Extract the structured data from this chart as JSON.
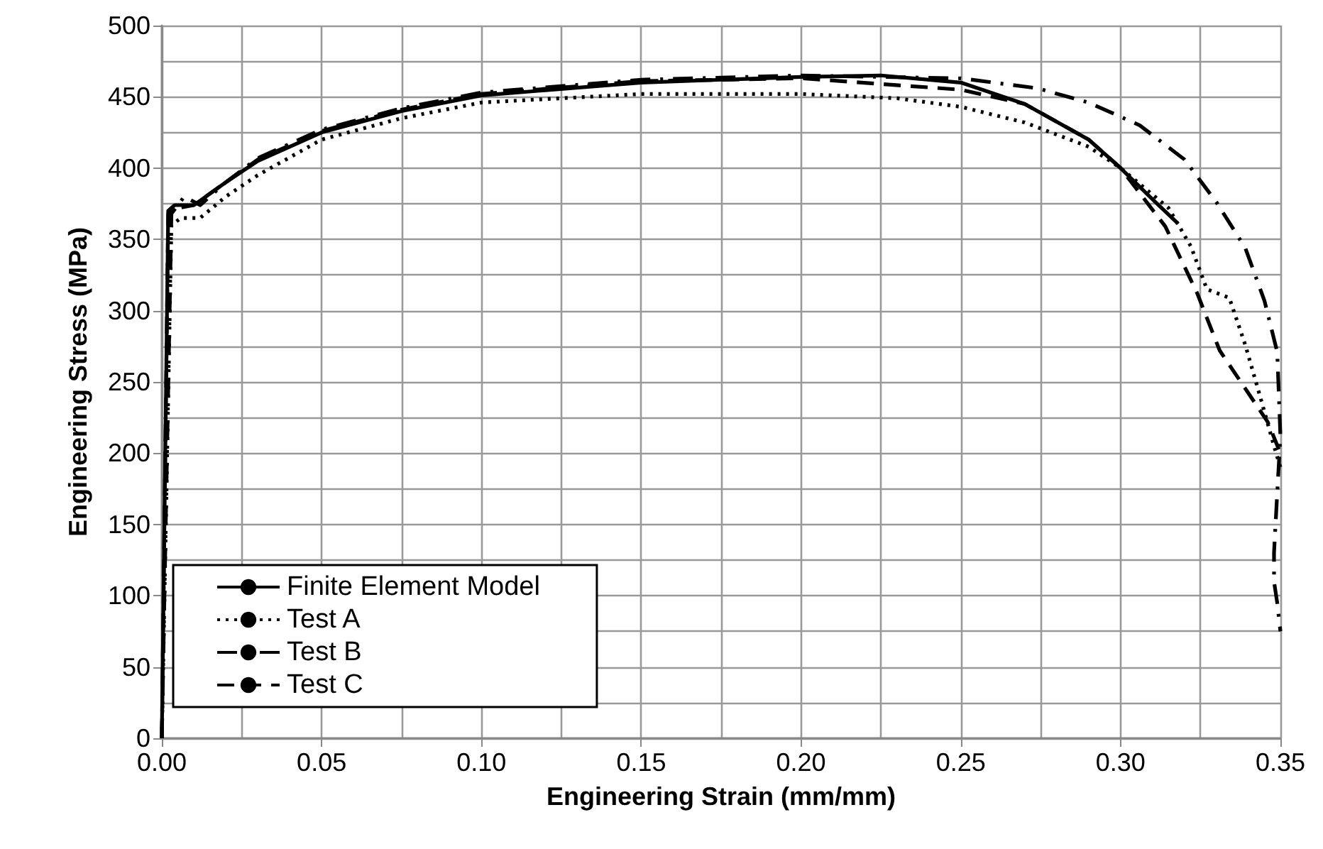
{
  "chart_data": {
    "type": "line",
    "xlabel": "Engineering Strain (mm/mm)",
    "ylabel": "Engineering Stress (MPa)",
    "xlim": [
      0,
      0.35
    ],
    "xticks": [
      {
        "value": 0,
        "label": "0.00"
      },
      0.05,
      {
        "value": 0.1,
        "label": "0.10"
      },
      0.15,
      {
        "value": 0.2,
        "label": "0.20"
      },
      0.25,
      {
        "value": 0.3,
        "label": "0.30"
      },
      0.35
    ],
    "ylim": [
      0,
      500
    ],
    "yticks": [
      0,
      50,
      100,
      150,
      200,
      250,
      300,
      350,
      400,
      450,
      500
    ],
    "grid": true,
    "legend": "bottom left",
    "marker": "none",
    "series": [
      {
        "name": "Finite Element Model",
        "color": "#000000",
        "line_style": "solid",
        "x": [
          0,
          0.002,
          0.004,
          0.01,
          0.02,
          0.03,
          0.05,
          0.075,
          0.1,
          0.15,
          0.2,
          0.225,
          0.25,
          0.27,
          0.29,
          0.3,
          0.31,
          0.318
        ],
        "values": [
          0,
          370,
          374,
          374,
          390,
          405,
          425,
          440,
          451,
          460,
          464,
          465,
          460,
          445,
          420,
          400,
          378,
          361
        ]
      },
      {
        "name": "Test A",
        "color": "#000000",
        "line_style": "dotted",
        "x": [
          0,
          0.003,
          0.006,
          0.012,
          0.02,
          0.03,
          0.05,
          0.075,
          0.1,
          0.15,
          0.2,
          0.23,
          0.25,
          0.27,
          0.29,
          0.3,
          0.315,
          0.322,
          0.327,
          0.334,
          0.339,
          0.344,
          0.348,
          0.35
        ],
        "values": [
          0,
          360,
          365,
          365,
          380,
          395,
          420,
          435,
          446,
          452,
          452,
          449,
          443,
          432,
          415,
          400,
          372,
          345,
          315,
          309,
          276,
          237,
          205,
          190
        ]
      },
      {
        "name": "Test B",
        "color": "#000000",
        "line_style": "dashdot",
        "x": [
          0,
          0.003,
          0.007,
          0.012,
          0.02,
          0.03,
          0.05,
          0.075,
          0.1,
          0.15,
          0.2,
          0.25,
          0.274,
          0.29,
          0.306,
          0.32,
          0.33,
          0.339,
          0.345,
          0.349,
          0.35,
          0.349,
          0.348,
          0.348,
          0.349,
          0.35
        ],
        "values": [
          0,
          368,
          380,
          374,
          390,
          407,
          427,
          442,
          453,
          462,
          465,
          463,
          456,
          446,
          430,
          406,
          376,
          344,
          307,
          271,
          212,
          172,
          130,
          110,
          95,
          75
        ]
      },
      {
        "name": "Test C",
        "color": "#000000",
        "line_style": "dashed",
        "x": [
          0,
          0.002,
          0.005,
          0.01,
          0.02,
          0.03,
          0.05,
          0.075,
          0.1,
          0.15,
          0.2,
          0.25,
          0.27,
          0.29,
          0.3,
          0.314,
          0.324,
          0.331,
          0.34,
          0.346,
          0.35
        ],
        "values": [
          0,
          368,
          372,
          374,
          390,
          406,
          426,
          441,
          452,
          461,
          463,
          455,
          445,
          420,
          400,
          359,
          312,
          272,
          242,
          222,
          200
        ]
      }
    ]
  }
}
